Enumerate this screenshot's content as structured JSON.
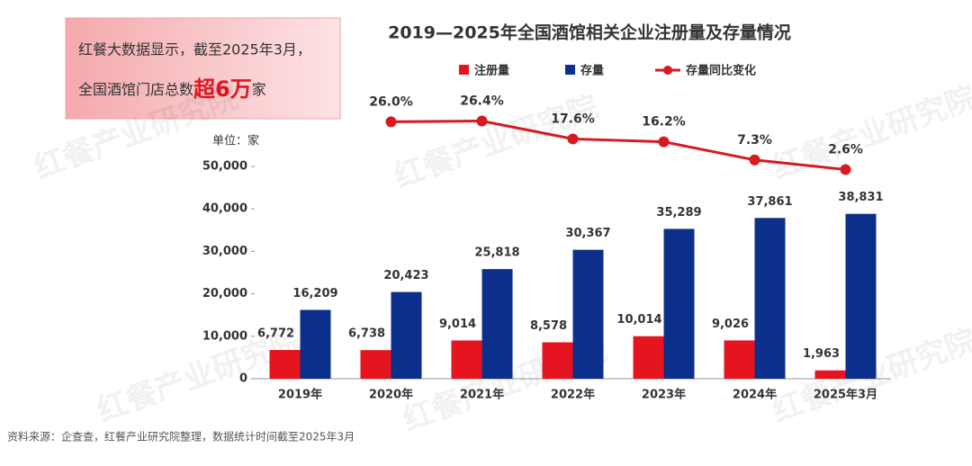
{
  "chart_data": {
    "type": "bar",
    "title": "2019—2025年全国酒馆相关企业注册量及存量情况",
    "unit_label": "单位：家",
    "source": "资料来源：企查查，红餐产业研究院整理，数据统计时间截至2025年3月",
    "watermark": "红餐产业研究院",
    "callout": {
      "line1": "红餐大数据显示，截至2025年3月，",
      "line2_prefix": "全国酒馆门店总数",
      "highlight": "超6万",
      "line2_suffix": "家"
    },
    "categories": [
      "2019年",
      "2020年",
      "2021年",
      "2022年",
      "2023年",
      "2024年",
      "2025年3月"
    ],
    "series": [
      {
        "name": "注册量",
        "color": "#e5141e",
        "values": [
          6772,
          6738,
          9014,
          8578,
          10014,
          9026,
          1963
        ],
        "value_labels": [
          "6,772",
          "6,738",
          "9,014",
          "8,578",
          "10,014",
          "9,026",
          "1,963"
        ]
      },
      {
        "name": "存量",
        "color": "#0b2f8a",
        "values": [
          16209,
          20423,
          25818,
          30367,
          35289,
          37861,
          38831
        ],
        "value_labels": [
          "16,209",
          "20,423",
          "25,818",
          "30,367",
          "35,289",
          "37,861",
          "38,831"
        ]
      },
      {
        "name": "存量同比变化",
        "color": "#d71920",
        "type": "line",
        "axis": "y2",
        "values": [
          null,
          26.0,
          26.4,
          17.6,
          16.2,
          7.3,
          2.6
        ],
        "value_labels": [
          null,
          "26.0%",
          "26.4%",
          "17.6%",
          "16.2%",
          "7.3%",
          "2.6%"
        ]
      }
    ],
    "ylim": [
      0,
      50000
    ],
    "yticks": [
      0,
      {
        "value": 10000,
        "label": "10,000"
      },
      {
        "value": 20000,
        "label": "20,000"
      },
      {
        "value": 30000,
        "label": "30,000"
      },
      {
        "value": 40000,
        "label": "40,000"
      },
      {
        "value": 50000,
        "label": "50,000"
      }
    ],
    "y2lim": [
      -100,
      35
    ],
    "grid": false,
    "legend": "top"
  }
}
